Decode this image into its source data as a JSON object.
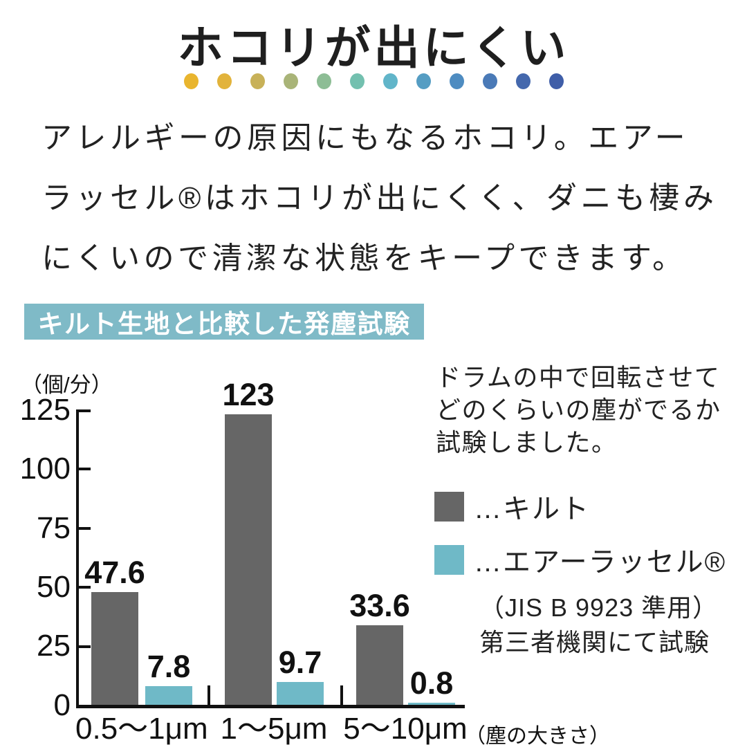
{
  "title": "ホコリが出にくい",
  "dots_colors": [
    "#e9b52e",
    "#e2b33b",
    "#c8b158",
    "#a9b478",
    "#8dbd95",
    "#73c0af",
    "#61b5c9",
    "#559dc3",
    "#4e8cc1",
    "#4a7ab7",
    "#4468ad",
    "#3f5ea8"
  ],
  "paragraph": {
    "lines": [
      "アレルギーの原因にもなるホコリ。エアー",
      "ラッセル®はホコリが出にくく、ダニも棲み",
      "にくいので清潔な状態をキープできます。"
    ]
  },
  "section_badge": "キルト生地と比較した発塵試験",
  "description": {
    "lines": [
      "ドラムの中で回転させて",
      "どのくらいの塵がでるか",
      "試験しました。"
    ]
  },
  "legend": [
    {
      "label": "…キルト",
      "color": "#666666"
    },
    {
      "label": "…エアーラッセル®",
      "color": "#6fb9c7"
    }
  ],
  "note": {
    "lines": [
      "（JIS B 9923 準用）",
      "第三者機関にて試験"
    ]
  },
  "colors": {
    "badge_teal": "#7fbac7",
    "bar_gray": "#666666",
    "bar_teal": "#6fb9c7",
    "axis_black": "#111111"
  },
  "chart_data": {
    "type": "bar",
    "title": "キルト生地と比較した発塵試験",
    "ylabel": "（個/分）",
    "xlabel": "（塵の大きさ）",
    "categories": [
      "0.5〜1μm",
      "1〜5μm",
      "5〜10μm"
    ],
    "series": [
      {
        "name": "キルト",
        "color": "#666666",
        "values": [
          47.6,
          123,
          33.6
        ]
      },
      {
        "name": "エアーラッセル®",
        "color": "#6fb9c7",
        "values": [
          7.8,
          9.7,
          0.8
        ]
      }
    ],
    "ylim": [
      0,
      125
    ],
    "yticks": [
      0,
      25,
      50,
      75,
      100,
      125
    ],
    "grid": false,
    "legend_position": "right",
    "value_labels_shown": true
  }
}
